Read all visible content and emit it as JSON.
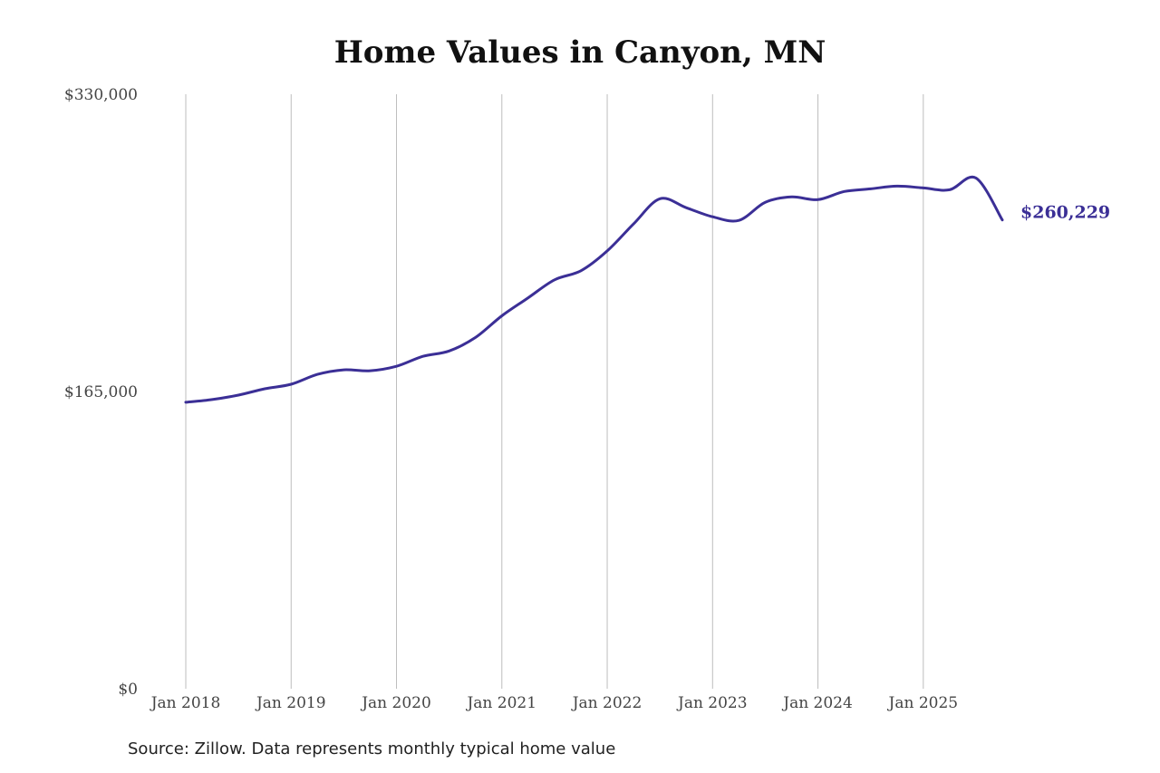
{
  "title": "Home Values in Canyon, MN",
  "source": "Source: Zillow. Data represents monthly typical home value",
  "colors": {
    "line": "#3b2f96",
    "grid": "#bdbdbd",
    "text": "#444444"
  },
  "chart_data": {
    "type": "line",
    "title": "Home Values in Canyon, MN",
    "xlabel": "",
    "ylabel": "",
    "ylim": [
      0,
      330000
    ],
    "y_ticks": [
      0,
      165000,
      330000
    ],
    "y_tick_labels": [
      "$0",
      "$165,000",
      "$330,000"
    ],
    "x_tick_labels": [
      "Jan 2018",
      "Jan 2019",
      "Jan 2020",
      "Jan 2021",
      "Jan 2022",
      "Jan 2023",
      "Jan 2024",
      "Jan 2025"
    ],
    "x_tick_values": [
      2018,
      2019,
      2020,
      2021,
      2022,
      2023,
      2024,
      2025
    ],
    "xlim": [
      2018,
      2025.75
    ],
    "grid": "vertical",
    "end_label": "$260,229",
    "series": [
      {
        "values": [
          {
            "x": 2018.0,
            "y": 159000
          },
          {
            "x": 2018.25,
            "y": 160500
          },
          {
            "x": 2018.5,
            "y": 163000
          },
          {
            "x": 2018.75,
            "y": 166500
          },
          {
            "x": 2019.0,
            "y": 169000
          },
          {
            "x": 2019.25,
            "y": 174500
          },
          {
            "x": 2019.5,
            "y": 177000
          },
          {
            "x": 2019.75,
            "y": 176500
          },
          {
            "x": 2020.0,
            "y": 179000
          },
          {
            "x": 2020.25,
            "y": 184500
          },
          {
            "x": 2020.5,
            "y": 187500
          },
          {
            "x": 2020.75,
            "y": 195000
          },
          {
            "x": 2021.0,
            "y": 207000
          },
          {
            "x": 2021.25,
            "y": 217000
          },
          {
            "x": 2021.5,
            "y": 227000
          },
          {
            "x": 2021.75,
            "y": 232000
          },
          {
            "x": 2022.0,
            "y": 243000
          },
          {
            "x": 2022.25,
            "y": 258000
          },
          {
            "x": 2022.5,
            "y": 272000
          },
          {
            "x": 2022.75,
            "y": 267000
          },
          {
            "x": 2023.0,
            "y": 262000
          },
          {
            "x": 2023.25,
            "y": 260000
          },
          {
            "x": 2023.5,
            "y": 270000
          },
          {
            "x": 2023.75,
            "y": 273000
          },
          {
            "x": 2024.0,
            "y": 271500
          },
          {
            "x": 2024.25,
            "y": 276000
          },
          {
            "x": 2024.5,
            "y": 277500
          },
          {
            "x": 2024.75,
            "y": 279000
          },
          {
            "x": 2025.0,
            "y": 278000
          },
          {
            "x": 2025.25,
            "y": 277000
          },
          {
            "x": 2025.5,
            "y": 283500
          },
          {
            "x": 2025.75,
            "y": 260229
          }
        ]
      }
    ]
  }
}
